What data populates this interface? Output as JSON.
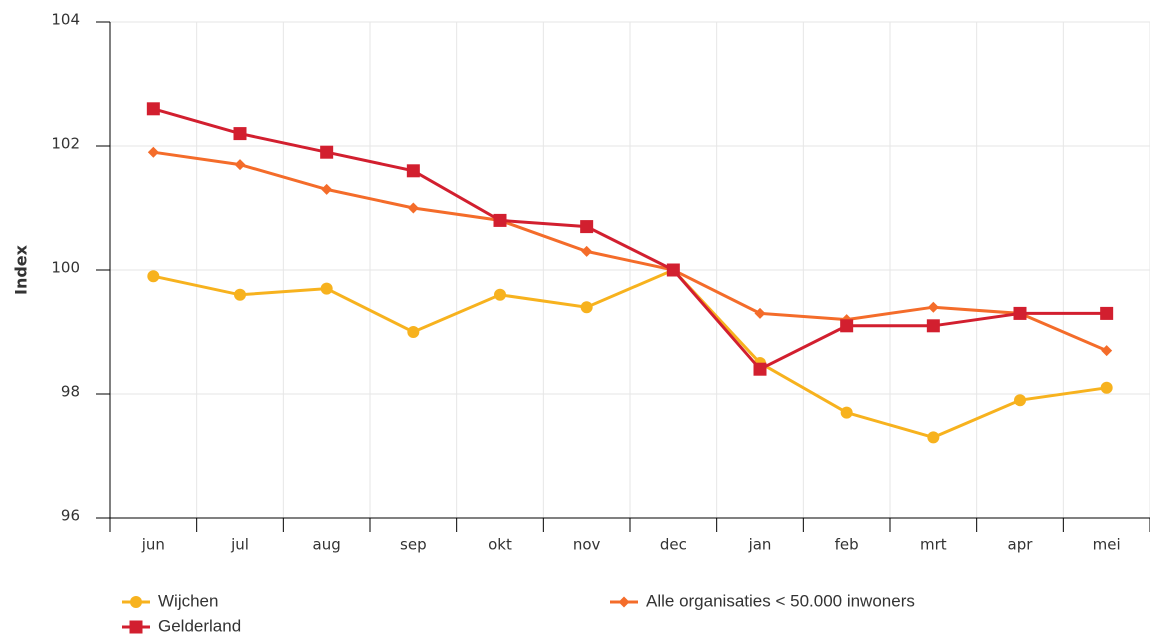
{
  "chart_data": {
    "type": "line",
    "y_label": "Index",
    "categories": [
      "jun",
      "jul",
      "aug",
      "sep",
      "okt",
      "nov",
      "dec",
      "jan",
      "feb",
      "mrt",
      "apr",
      "mei"
    ],
    "series": [
      {
        "name": "Wijchen",
        "color": "#f7b21e",
        "marker": "circle",
        "values": [
          99.9,
          99.6,
          99.7,
          99.0,
          99.6,
          99.4,
          100.0,
          98.5,
          97.7,
          97.3,
          97.9,
          98.1
        ]
      },
      {
        "name": "Alle organisaties < 50.000 inwoners",
        "color": "#f46c2a",
        "marker": "diamond",
        "values": [
          101.9,
          101.7,
          101.3,
          101.0,
          100.8,
          100.3,
          100.0,
          99.3,
          99.2,
          99.4,
          99.3,
          98.7
        ]
      },
      {
        "name": "Gelderland",
        "color": "#d21f2f",
        "marker": "square",
        "values": [
          102.6,
          102.2,
          101.9,
          101.6,
          100.8,
          100.7,
          100.0,
          98.4,
          99.1,
          99.1,
          99.3,
          99.3
        ]
      }
    ],
    "ylim": [
      96,
      104
    ],
    "yticks": [
      96,
      98,
      100,
      102,
      104
    ],
    "grid": true
  }
}
